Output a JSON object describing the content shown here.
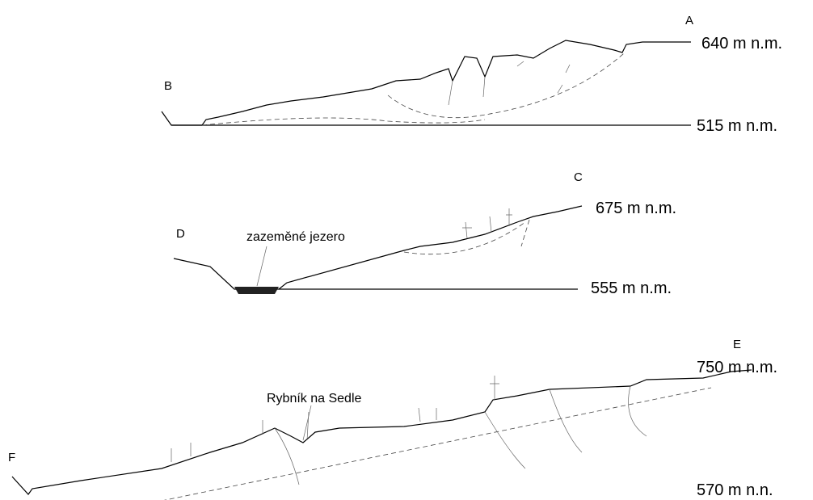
{
  "profiles": [
    {
      "top_point": "A",
      "top_level": "640 m n.m.",
      "bottom_point": "B",
      "bottom_level": "515 m n.m."
    },
    {
      "top_point": "C",
      "top_level": "675 m n.m.",
      "bottom_point": "D",
      "bottom_level": "555 m n.m.",
      "annotation": "zazeměné jezero"
    },
    {
      "top_point": "E",
      "top_level": "750 m n.m.",
      "bottom_point": "F",
      "bottom_level": "570 m n.n.",
      "annotation": "Rybník na Sedle"
    }
  ]
}
